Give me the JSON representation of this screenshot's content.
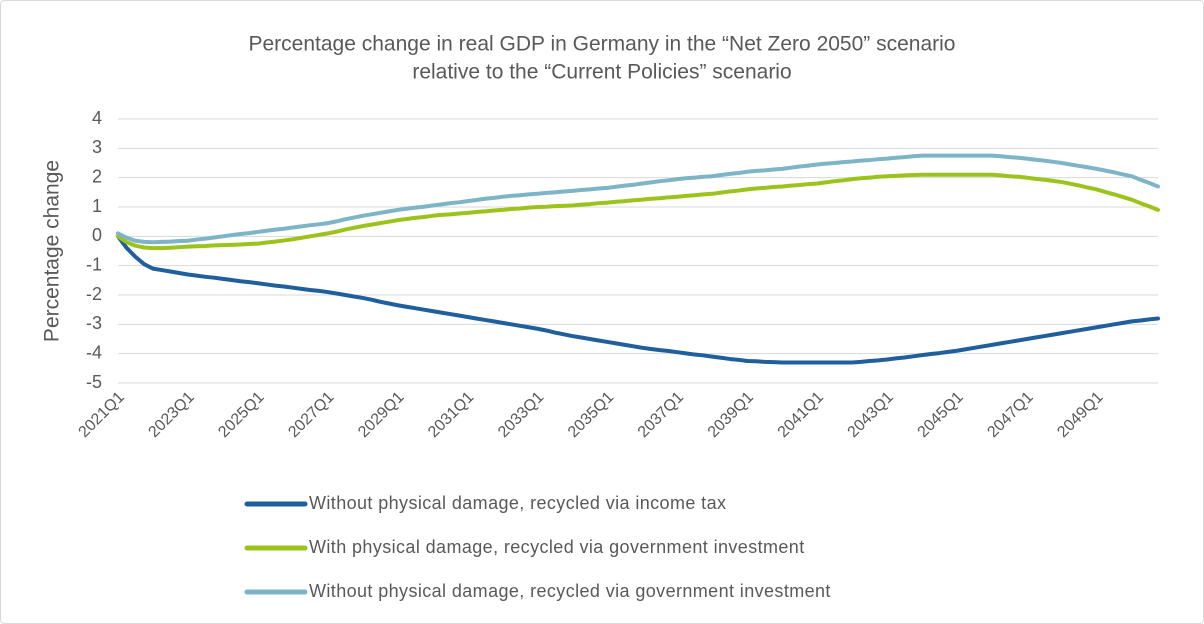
{
  "chart_data": {
    "type": "line",
    "title": [
      "Percentage change in real GDP in Germany in the “Net Zero 2050” scenario",
      "relative to the “Current Policies” scenario"
    ],
    "y_label": "Percentage change",
    "ylim": [
      -5,
      4
    ],
    "yticks": [
      -5,
      -4,
      -3,
      -2,
      -1,
      0,
      1,
      2,
      3,
      4
    ],
    "grid": true,
    "legend": "bottom",
    "categories": [
      "2021Q1",
      null,
      null,
      null,
      null,
      null,
      null,
      null,
      "2023Q1",
      null,
      null,
      null,
      null,
      null,
      null,
      null,
      "2025Q1",
      null,
      null,
      null,
      null,
      null,
      null,
      null,
      "2027Q1",
      null,
      null,
      null,
      null,
      null,
      null,
      null,
      "2029Q1",
      null,
      null,
      null,
      null,
      null,
      null,
      null,
      "2031Q1",
      null,
      null,
      null,
      null,
      null,
      null,
      null,
      "2033Q1",
      null,
      null,
      null,
      null,
      null,
      null,
      null,
      "2035Q1",
      null,
      null,
      null,
      null,
      null,
      null,
      null,
      "2037Q1",
      null,
      null,
      null,
      null,
      null,
      null,
      null,
      "2039Q1",
      null,
      null,
      null,
      null,
      null,
      null,
      null,
      "2041Q1",
      null,
      null,
      null,
      null,
      null,
      null,
      null,
      "2043Q1",
      null,
      null,
      null,
      null,
      null,
      null,
      null,
      "2045Q1",
      null,
      null,
      null,
      null,
      null,
      null,
      null,
      "2047Q1",
      null,
      null,
      null,
      null,
      null,
      null,
      null,
      "2049Q1",
      null,
      null,
      null,
      null,
      null,
      null,
      null
    ],
    "series": [
      {
        "name": "Without physical damage, recycled via income tax",
        "color": "#1f5f9e",
        "values": [
          0,
          -0.4,
          -0.7,
          -0.95,
          -1.1,
          -1.15,
          -1.2,
          -1.25,
          -1.3,
          -1.34,
          -1.38,
          -1.41,
          -1.45,
          -1.49,
          -1.53,
          -1.56,
          -1.6,
          -1.64,
          -1.68,
          -1.71,
          -1.75,
          -1.79,
          -1.83,
          -1.86,
          -1.9,
          -1.95,
          -2.0,
          -2.05,
          -2.1,
          -2.16,
          -2.23,
          -2.29,
          -2.35,
          -2.4,
          -2.45,
          -2.5,
          -2.55,
          -2.6,
          -2.65,
          -2.7,
          -2.75,
          -2.8,
          -2.85,
          -2.9,
          -2.95,
          -3.0,
          -3.05,
          -3.1,
          -3.15,
          -3.21,
          -3.28,
          -3.34,
          -3.4,
          -3.45,
          -3.5,
          -3.55,
          -3.6,
          -3.65,
          -3.7,
          -3.75,
          -3.8,
          -3.84,
          -3.88,
          -3.91,
          -3.95,
          -3.99,
          -4.03,
          -4.06,
          -4.1,
          -4.14,
          -4.18,
          -4.21,
          -4.25,
          -4.26,
          -4.28,
          -4.29,
          -4.3,
          -4.3,
          -4.3,
          -4.3,
          -4.3,
          -4.3,
          -4.3,
          -4.3,
          -4.3,
          -4.28,
          -4.25,
          -4.23,
          -4.2,
          -4.16,
          -4.13,
          -4.09,
          -4.05,
          -4.01,
          -3.98,
          -3.94,
          -3.9,
          -3.85,
          -3.8,
          -3.75,
          -3.7,
          -3.65,
          -3.6,
          -3.55,
          -3.5,
          -3.45,
          -3.4,
          -3.35,
          -3.3,
          -3.25,
          -3.2,
          -3.15,
          -3.1,
          -3.05,
          -3.0,
          -2.95,
          -2.9,
          -2.87,
          -2.83,
          -2.8
        ]
      },
      {
        "name": "With physical damage, recycled via government investment",
        "color": "#9bc31c",
        "values": [
          0,
          -0.2,
          -0.32,
          -0.38,
          -0.4,
          -0.4,
          -0.39,
          -0.37,
          -0.35,
          -0.34,
          -0.33,
          -0.31,
          -0.3,
          -0.29,
          -0.28,
          -0.26,
          -0.25,
          -0.21,
          -0.18,
          -0.14,
          -0.1,
          -0.05,
          0,
          0.05,
          0.1,
          0.16,
          0.23,
          0.29,
          0.35,
          0.4,
          0.45,
          0.5,
          0.55,
          0.59,
          0.63,
          0.66,
          0.7,
          0.73,
          0.75,
          0.78,
          0.8,
          0.83,
          0.85,
          0.88,
          0.9,
          0.93,
          0.95,
          0.98,
          1.0,
          1.01,
          1.03,
          1.04,
          1.05,
          1.08,
          1.1,
          1.13,
          1.15,
          1.18,
          1.2,
          1.23,
          1.25,
          1.28,
          1.3,
          1.33,
          1.35,
          1.38,
          1.4,
          1.43,
          1.45,
          1.49,
          1.53,
          1.56,
          1.6,
          1.63,
          1.65,
          1.68,
          1.7,
          1.73,
          1.75,
          1.78,
          1.8,
          1.84,
          1.88,
          1.91,
          1.95,
          1.98,
          2.0,
          2.03,
          2.05,
          2.06,
          2.08,
          2.09,
          2.1,
          2.1,
          2.1,
          2.1,
          2.1,
          2.1,
          2.1,
          2.1,
          2.1,
          2.08,
          2.05,
          2.03,
          2.0,
          1.96,
          1.93,
          1.89,
          1.85,
          1.79,
          1.73,
          1.66,
          1.6,
          1.51,
          1.43,
          1.34,
          1.25,
          1.13,
          1.02,
          0.9
        ]
      },
      {
        "name": "Without physical damage, recycled via government investment",
        "color": "#7db4c6",
        "values": [
          0.1,
          -0.05,
          -0.15,
          -0.19,
          -0.2,
          -0.19,
          -0.18,
          -0.16,
          -0.15,
          -0.11,
          -0.08,
          -0.04,
          0,
          0.04,
          0.08,
          0.11,
          0.15,
          0.19,
          0.23,
          0.26,
          0.3,
          0.34,
          0.38,
          0.41,
          0.45,
          0.51,
          0.58,
          0.64,
          0.7,
          0.75,
          0.8,
          0.85,
          0.9,
          0.94,
          0.98,
          1.01,
          1.05,
          1.09,
          1.13,
          1.16,
          1.2,
          1.24,
          1.28,
          1.31,
          1.35,
          1.38,
          1.4,
          1.43,
          1.45,
          1.48,
          1.5,
          1.53,
          1.55,
          1.58,
          1.6,
          1.63,
          1.65,
          1.69,
          1.73,
          1.76,
          1.8,
          1.84,
          1.88,
          1.91,
          1.95,
          1.98,
          2.0,
          2.03,
          2.05,
          2.09,
          2.13,
          2.16,
          2.2,
          2.23,
          2.25,
          2.28,
          2.3,
          2.34,
          2.38,
          2.41,
          2.45,
          2.48,
          2.5,
          2.53,
          2.55,
          2.58,
          2.6,
          2.63,
          2.65,
          2.68,
          2.7,
          2.73,
          2.75,
          2.75,
          2.75,
          2.75,
          2.75,
          2.75,
          2.75,
          2.75,
          2.75,
          2.73,
          2.7,
          2.68,
          2.65,
          2.61,
          2.58,
          2.54,
          2.5,
          2.45,
          2.4,
          2.35,
          2.3,
          2.24,
          2.18,
          2.11,
          2.05,
          1.93,
          1.82,
          1.7
        ]
      }
    ]
  }
}
